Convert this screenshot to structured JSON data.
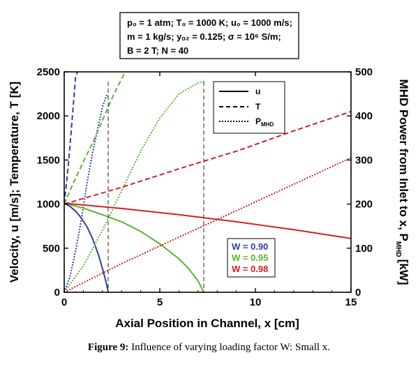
{
  "chart_data": {
    "type": "line",
    "xlabel": "Axial Position in Channel, x [cm]",
    "ylabel_left": "Velocity, u [m/s]; Temperature, T [K]",
    "ylabel_right_main": "MHD Power from Inlet to x, P",
    "ylabel_right_sub": "MHD",
    "ylabel_right_unit": "[kW]",
    "xlim": [
      0,
      15
    ],
    "ylim_left": [
      0,
      2500
    ],
    "ylim_right": [
      0,
      500
    ],
    "xticks": [
      "0",
      "5",
      "10",
      "15"
    ],
    "yticks_left": [
      "0",
      "500",
      "1000",
      "1500",
      "2000",
      "2500"
    ],
    "yticks_right": [
      "0",
      "100",
      "200",
      "300",
      "400",
      "500"
    ],
    "parameters": [
      "p₀ = 1 atm; T₀ = 1000 K; u₀ = 1000 m/s;",
      "m = 1 kg/s; yₒ₂ = 0.125; σ = 10⁶ S/m;",
      "B = 2 T; N = 40"
    ],
    "legend_styles": [
      {
        "label": "u",
        "sub": "",
        "dash": "solid"
      },
      {
        "label": "T",
        "sub": "",
        "dash": "dashed"
      },
      {
        "label": "P",
        "sub": "MHD",
        "dash": "dotted"
      }
    ],
    "loading_factors": [
      {
        "label": "W = 0.90",
        "color": "#2e3f9e",
        "x_end": 2.3
      },
      {
        "label": "W = 0.95",
        "color": "#5ab52e",
        "x_end": 7.3
      },
      {
        "label": "W = 0.98",
        "color": "#d42020",
        "x_end": 15
      }
    ],
    "series": [
      {
        "quantity": "u",
        "W": 0.9,
        "axis": "left",
        "dash": "solid",
        "x": [
          0,
          0.3,
          0.6,
          0.9,
          1.2,
          1.5,
          1.8,
          2.0,
          2.15,
          2.3
        ],
        "y": [
          1010,
          975,
          920,
          840,
          740,
          600,
          420,
          270,
          150,
          10
        ]
      },
      {
        "quantity": "T",
        "W": 0.9,
        "axis": "left",
        "dash": "dashed",
        "x": [
          0,
          0.15,
          0.3,
          0.45,
          0.6,
          0.7
        ],
        "y": [
          1000,
          1300,
          1650,
          2050,
          2450,
          2500
        ]
      },
      {
        "quantity": "P",
        "W": 0.9,
        "axis": "right",
        "dash": "dotted",
        "x": [
          0,
          0.3,
          0.6,
          0.9,
          1.2,
          1.5,
          1.8,
          2.0,
          2.2,
          2.3
        ],
        "y": [
          0,
          35,
          95,
          165,
          250,
          320,
          380,
          420,
          445,
          450
        ]
      },
      {
        "quantity": "u",
        "W": 0.95,
        "axis": "left",
        "dash": "solid",
        "x": [
          0,
          1,
          2,
          3,
          4,
          5,
          6,
          6.5,
          7,
          7.3
        ],
        "y": [
          1010,
          955,
          880,
          800,
          690,
          550,
          380,
          270,
          130,
          0
        ]
      },
      {
        "quantity": "T",
        "W": 0.95,
        "axis": "left",
        "dash": "dashed",
        "x": [
          0,
          0.5,
          1,
          1.5,
          2,
          2.5,
          3,
          3.2
        ],
        "y": [
          1000,
          1250,
          1480,
          1700,
          1950,
          2200,
          2420,
          2500
        ]
      },
      {
        "quantity": "P",
        "W": 0.95,
        "axis": "right",
        "dash": "dotted",
        "x": [
          0,
          1,
          2,
          3,
          4,
          5,
          6,
          7,
          7.3
        ],
        "y": [
          0,
          60,
          140,
          230,
          320,
          395,
          450,
          475,
          478
        ]
      },
      {
        "quantity": "u",
        "W": 0.98,
        "axis": "left",
        "dash": "solid",
        "x": [
          0,
          3,
          6,
          9,
          12,
          15
        ],
        "y": [
          1010,
          950,
          880,
          800,
          710,
          610
        ]
      },
      {
        "quantity": "T",
        "W": 0.98,
        "axis": "left",
        "dash": "dashed",
        "x": [
          0,
          3,
          6,
          9,
          12,
          15
        ],
        "y": [
          1000,
          1190,
          1400,
          1600,
          1830,
          2050
        ]
      },
      {
        "quantity": "P",
        "W": 0.98,
        "axis": "right",
        "dash": "dotted",
        "x": [
          0,
          3,
          6,
          9,
          12,
          15
        ],
        "y": [
          0,
          65,
          125,
          185,
          245,
          305
        ]
      }
    ]
  },
  "caption": {
    "label": "Figure 9:",
    "text": "Influence of varying loading factor W: Small x."
  }
}
